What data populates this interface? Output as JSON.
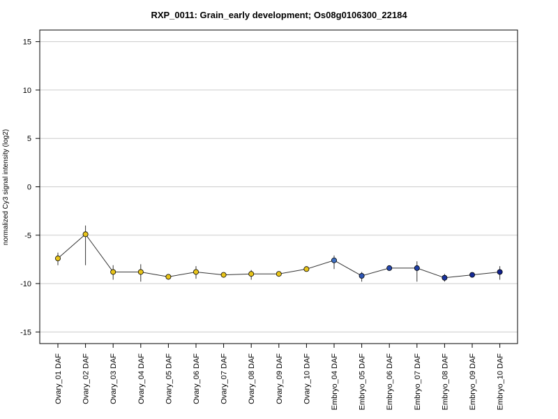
{
  "chart_data": {
    "type": "line",
    "title": "RXP_0011: Grain_early development; Os08g0106300_22184",
    "xlabel": "",
    "ylabel": "normalized Cy3 signal intensity (log2)",
    "ylim": [
      -16.2,
      16.2
    ],
    "yticks": [
      15,
      10,
      5,
      0,
      -5,
      -10,
      -15
    ],
    "grid": true,
    "legend": "none",
    "categories": [
      "Ovary_01 DAF",
      "Ovary_02 DAF",
      "Ovary_03 DAF",
      "Ovary_04 DAF",
      "Ovary_05 DAF",
      "Ovary_06 DAF",
      "Ovary_07 DAF",
      "Ovary_08 DAF",
      "Ovary_09 DAF",
      "Ovary_10 DAF",
      "Embryo_04 DAF",
      "Embryo_05 DAF",
      "Embryo_06 DAF",
      "Embryo_07 DAF",
      "Embryo_08 DAF",
      "Embryo_09 DAF",
      "Embryo_10 DAF"
    ],
    "values": [
      -7.4,
      -4.9,
      -8.8,
      -8.8,
      -9.3,
      -8.8,
      -9.1,
      -9.0,
      -9.0,
      -8.5,
      -7.6,
      -9.2,
      -8.4,
      -8.4,
      -9.4,
      -9.1,
      -8.8
    ],
    "error_low": [
      -8.1,
      -8.1,
      -9.6,
      -9.8,
      -9.6,
      -9.5,
      -9.3,
      -9.6,
      -9.2,
      -8.7,
      -8.5,
      -9.8,
      -8.6,
      -9.8,
      -9.8,
      -9.3,
      -9.6
    ],
    "error_high": [
      -6.8,
      -4.0,
      -8.1,
      -8.0,
      -9.1,
      -8.2,
      -8.9,
      -8.6,
      -8.8,
      -8.3,
      -7.1,
      -8.8,
      -8.2,
      -7.7,
      -9.0,
      -8.9,
      -8.2
    ],
    "marker_colors": [
      "#E8C41A",
      "#E8C41A",
      "#E8C41A",
      "#E8C41A",
      "#E8C41A",
      "#E8C41A",
      "#E8C41A",
      "#E8C41A",
      "#E8C41A",
      "#E8C41A",
      "#3E6FC2",
      "#2E56B5",
      "#2748AD",
      "#2040A6",
      "#1A339E",
      "#152A96",
      "#10218E"
    ],
    "line_color": "#333333",
    "grid_color": "#cccccc"
  }
}
